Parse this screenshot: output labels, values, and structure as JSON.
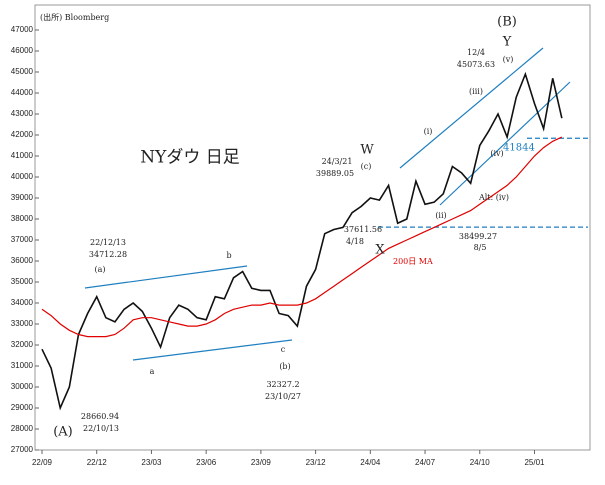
{
  "chart_data": {
    "type": "line",
    "title": "NYダウ 日足",
    "source": "(出所) Bloomberg",
    "categories": [
      "22/09",
      null,
      null,
      null,
      null,
      null,
      "22/12",
      null,
      null,
      null,
      null,
      null,
      "23/03",
      null,
      null,
      null,
      null,
      null,
      "23/06",
      null,
      null,
      null,
      null,
      null,
      "23/09",
      null,
      null,
      null,
      null,
      null,
      "23/12",
      null,
      null,
      null,
      null,
      null,
      "24/04",
      null,
      null,
      null,
      null,
      null,
      "24/07",
      null,
      null,
      null,
      null,
      null,
      "24/10",
      null,
      null,
      null,
      null,
      null,
      "25/01",
      null,
      null,
      null
    ],
    "series": [
      {
        "name": "NYダウ",
        "color": "#111111",
        "values": [
          31800,
          30900,
          29000,
          30000,
          32500,
          33500,
          34300,
          33300,
          33100,
          33700,
          34000,
          33600,
          32800,
          31900,
          33300,
          33900,
          33700,
          33300,
          33200,
          34300,
          34200,
          35200,
          35500,
          34700,
          34600,
          34600,
          33500,
          33400,
          32900,
          34800,
          35600,
          37300,
          37500,
          37600,
          38300,
          38600,
          39000,
          38900,
          39600,
          37800,
          38000,
          39800,
          38700,
          38800,
          39200,
          40500,
          40200,
          39700,
          41500,
          42200,
          43000,
          41900,
          43800,
          44900,
          43500,
          42300,
          44700,
          42800
        ]
      },
      {
        "name": "200日 MA",
        "color": "#e00000",
        "values": [
          33700,
          33400,
          33000,
          32700,
          32500,
          32400,
          32400,
          32400,
          32500,
          32800,
          33200,
          33300,
          33300,
          33200,
          33100,
          33000,
          32900,
          32900,
          33000,
          33200,
          33500,
          33700,
          33800,
          33900,
          33900,
          34000,
          33900,
          33900,
          33900,
          34000,
          34200,
          34500,
          34800,
          35100,
          35400,
          35700,
          36000,
          36300,
          36600,
          36800,
          37000,
          37200,
          37400,
          37600,
          37800,
          38000,
          38200,
          38400,
          38700,
          39000,
          39300,
          39600,
          40000,
          40500,
          41000,
          41400,
          41700,
          41900
        ]
      }
    ],
    "ylim": [
      27000,
      47000
    ],
    "yticks": [
      27000,
      28000,
      29000,
      30000,
      31000,
      32000,
      33000,
      34000,
      35000,
      36000,
      37000,
      38000,
      39000,
      40000,
      41000,
      42000,
      43000,
      44000,
      45000,
      46000,
      47000
    ],
    "levels": [
      41844,
      37611.56
    ],
    "annotations": [
      "(B)",
      "Y",
      "12/4",
      "45073.63",
      "(v)",
      "(iii)",
      "(i)",
      "(iv)",
      "W",
      "24/3/21",
      "39889.05",
      "(c)",
      "4/18",
      "X",
      "Alt: (iv)",
      "(ii)",
      "38499.27",
      "8/5",
      "22/12/13",
      "34712.28",
      "(a)",
      "b",
      "a",
      "c",
      "(b)",
      "32327.2",
      "23/10/27",
      "28660.94",
      "22/10/13",
      "(A)"
    ]
  }
}
